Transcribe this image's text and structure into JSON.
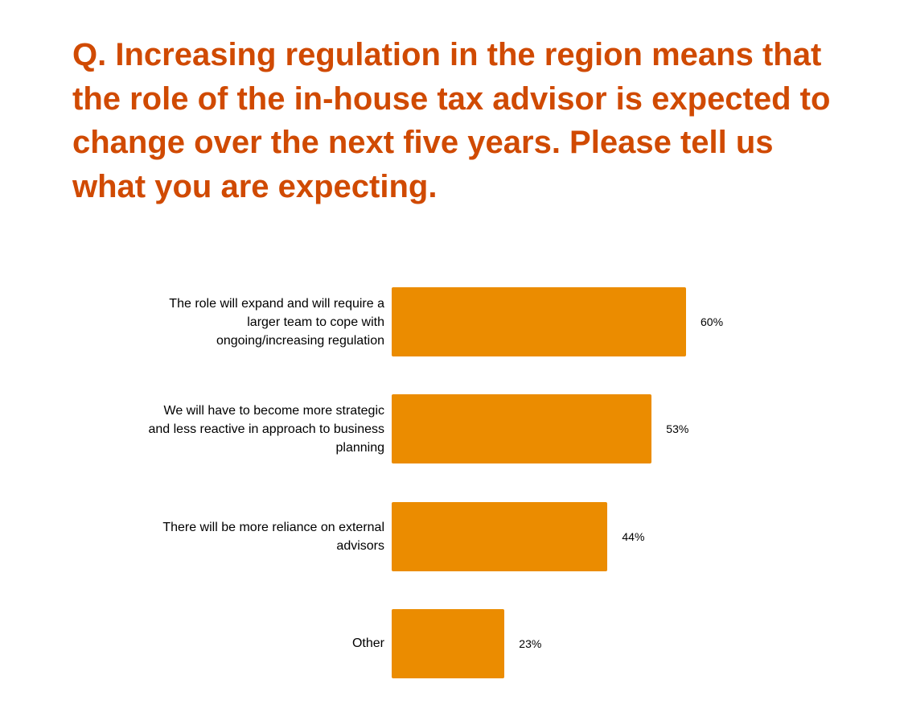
{
  "chart_data": {
    "type": "bar",
    "orientation": "horizontal",
    "title": "Q. Increasing regulation in the region means that the role of the in-house tax advisor is expected to change over the next five years. Please tell us what you are expecting.",
    "categories": [
      "The role will expand and will require a larger team to cope with ongoing/increasing regulation",
      "We will have to become more strategic and less reactive in approach to business planning",
      "There will be more reliance on external advisors",
      "Other"
    ],
    "values": [
      60,
      53,
      44,
      23
    ],
    "value_labels": [
      "60%",
      "53%",
      "44%",
      "23%"
    ],
    "color": "#eb8c00"
  }
}
